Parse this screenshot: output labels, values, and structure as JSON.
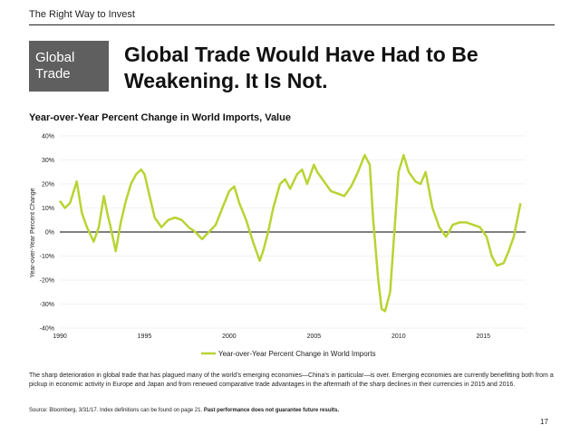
{
  "header": {
    "tagline": "The Right Way to Invest",
    "section_line1": "Global",
    "section_line2": "Trade",
    "headline_line1": "Global Trade Would Have Had to Be",
    "headline_line2": "Weakening.  It Is Not."
  },
  "colors": {
    "series": "#b7d433",
    "section_box": "#5f5f5f",
    "zero_line": "#000000"
  },
  "chart_data": {
    "type": "line",
    "title": "Year-over-Year Percent Change in World Imports, Value",
    "xlabel": "",
    "ylabel": "Year-over-Year Percent Change",
    "xlim": [
      1990,
      2017.5
    ],
    "ylim": [
      -40,
      40
    ],
    "yticks": [
      40,
      30,
      20,
      10,
      0,
      -10,
      -20,
      -30,
      -40
    ],
    "ytick_labels": [
      "40%",
      "30%",
      "20%",
      "10%",
      "0%",
      "-10%",
      "-20%",
      "-30%",
      "-40%"
    ],
    "xticks": [
      1990,
      1995,
      2000,
      2005,
      2010,
      2015
    ],
    "xtick_labels": [
      "1990",
      "1995",
      "2000",
      "2005",
      "2010",
      "2015"
    ],
    "legend": "bottom",
    "series": [
      {
        "name": "Year-over-Year Percent Change in World Imports",
        "x": [
          1990.0,
          1990.3,
          1990.6,
          1991.0,
          1991.3,
          1991.6,
          1992.0,
          1992.3,
          1992.6,
          1992.8,
          1993.0,
          1993.3,
          1993.6,
          1993.9,
          1994.2,
          1994.5,
          1994.8,
          1995.0,
          1995.3,
          1995.6,
          1996.0,
          1996.4,
          1996.8,
          1997.2,
          1997.6,
          1998.0,
          1998.4,
          1998.8,
          1999.2,
          1999.6,
          2000.0,
          2000.3,
          2000.6,
          2001.0,
          2001.4,
          2001.8,
          2002.0,
          2002.3,
          2002.6,
          2003.0,
          2003.3,
          2003.6,
          2004.0,
          2004.3,
          2004.6,
          2005.0,
          2005.2,
          2005.5,
          2006.0,
          2006.4,
          2006.8,
          2007.2,
          2007.6,
          2008.0,
          2008.3,
          2008.5,
          2008.8,
          2009.0,
          2009.2,
          2009.5,
          2009.8,
          2010.0,
          2010.3,
          2010.6,
          2011.0,
          2011.3,
          2011.6,
          2012.0,
          2012.4,
          2012.8,
          2013.2,
          2013.6,
          2014.0,
          2014.4,
          2014.8,
          2015.2,
          2015.5,
          2015.8,
          2016.2,
          2016.5,
          2016.8,
          2017.0,
          2017.2
        ],
        "values": [
          13,
          10,
          12,
          21,
          8,
          2,
          -4,
          2,
          15,
          8,
          2,
          -8,
          4,
          13,
          20,
          24,
          26,
          24,
          15,
          6,
          2,
          5,
          6,
          5,
          2,
          0,
          -3,
          0,
          3,
          10,
          17,
          19,
          12,
          5,
          -4,
          -12,
          -8,
          0,
          10,
          20,
          22,
          18,
          24,
          26,
          20,
          28,
          25,
          22,
          17,
          16,
          15,
          19,
          25,
          32,
          28,
          5,
          -20,
          -32,
          -33,
          -25,
          5,
          25,
          32,
          25,
          21,
          20,
          25,
          10,
          2,
          -2,
          3,
          4,
          4,
          3,
          2,
          -2,
          -10,
          -14,
          -13,
          -8,
          -2,
          5,
          12
        ]
      }
    ]
  },
  "caption": "The sharp deterioration in global trade that has plagued many of the world’s emerging economies—China’s in particular—is over. Emerging economies are currently benefitting both from a pickup in economic activity in Europe and Japan and from renewed comparative trade advantages in the aftermath of the sharp declines in their currencies in 2015 and 2016.",
  "footer": {
    "source_text": "Source: Bloomberg, 3/31/17. Index definitions can be found on page 21.",
    "disclaimer": "Past performance does not guarantee future results.",
    "page_number": "17"
  }
}
